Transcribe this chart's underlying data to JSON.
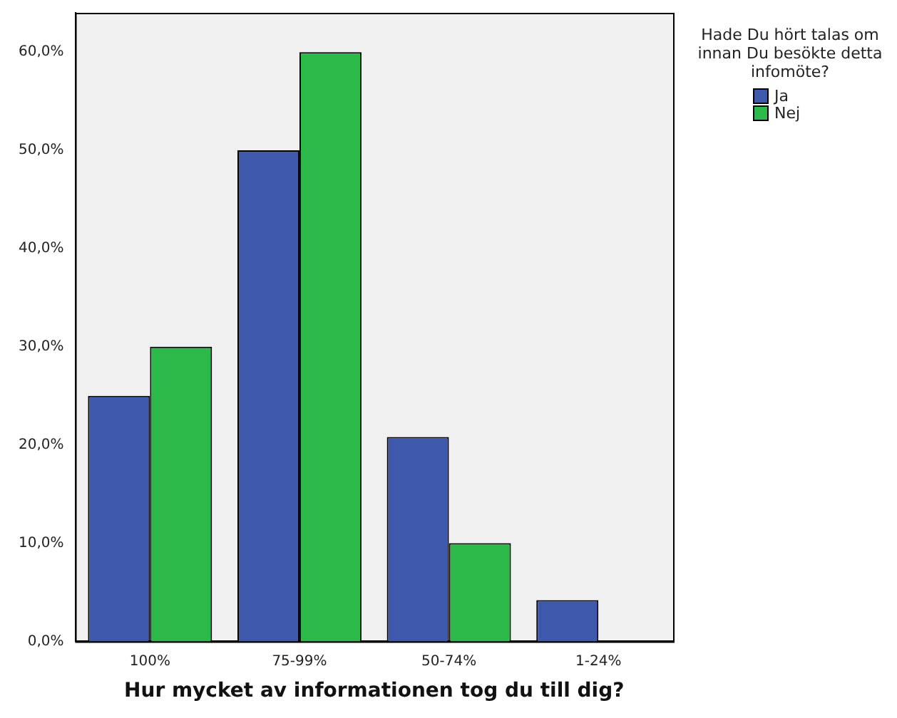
{
  "chart_data": {
    "type": "bar",
    "xlabel": "Hur mycket av informationen tog du till dig?",
    "legend_title": "Hade Du hört talas om innan Du besökte detta infomöte?",
    "categories": [
      "100%",
      "75-99%",
      "50-74%",
      "1-24%"
    ],
    "series": [
      {
        "name": "Ja",
        "color": "#3e58ac",
        "values": [
          25,
          50,
          20.8,
          4.2
        ]
      },
      {
        "name": "Nej",
        "color": "#2db84a",
        "values": [
          30,
          60,
          10,
          0
        ]
      }
    ],
    "ylim": [
      0,
      64
    ],
    "yticks": [
      {
        "value": 0,
        "label": "0,0%"
      },
      {
        "value": 10,
        "label": "10,0%"
      },
      {
        "value": 20,
        "label": "20,0%"
      },
      {
        "value": 30,
        "label": "30,0%"
      },
      {
        "value": 40,
        "label": "40,0%"
      },
      {
        "value": 50,
        "label": "50,0%"
      },
      {
        "value": 60,
        "label": "60,0%"
      }
    ],
    "grid": false,
    "legend": "top right"
  }
}
